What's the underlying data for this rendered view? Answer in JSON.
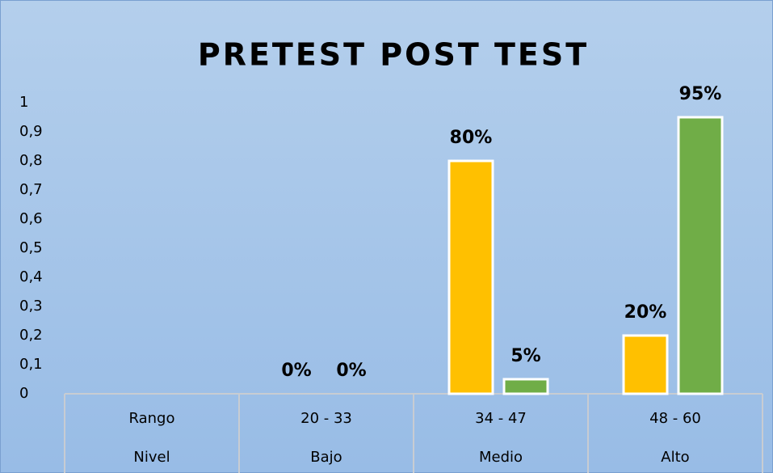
{
  "chart_data": {
    "type": "bar",
    "title": "PRETEST  POST TEST",
    "categories": [
      "Rango",
      "20 - 33",
      "34 - 47",
      "48 - 60"
    ],
    "subcategories": [
      "Nivel",
      "Bajo",
      "Medio",
      "Alto"
    ],
    "series": [
      {
        "color": "#ffc000",
        "values": [
          null,
          0,
          0.8,
          0.2
        ],
        "value_labels": [
          null,
          "0%",
          "80%",
          "20%"
        ]
      },
      {
        "color": "#70ad47",
        "values": [
          null,
          0,
          0.05,
          0.95
        ],
        "value_labels": [
          null,
          "0%",
          "5%",
          "95%"
        ]
      }
    ],
    "ylim": [
      0,
      1
    ],
    "yticks": [
      0,
      {
        "value": 0.1,
        "label": "0,1"
      },
      {
        "value": 0.2,
        "label": "0,2"
      },
      {
        "value": 0.3,
        "label": "0,3"
      },
      {
        "value": 0.4,
        "label": "0,4"
      },
      {
        "value": 0.5,
        "label": "0,5"
      },
      {
        "value": 0.6,
        "label": "0,6"
      },
      {
        "value": 0.7,
        "label": "0,7"
      },
      {
        "value": 0.8,
        "label": "0,8"
      },
      {
        "value": 0.9,
        "label": "0,9"
      },
      1
    ],
    "grid": false
  }
}
